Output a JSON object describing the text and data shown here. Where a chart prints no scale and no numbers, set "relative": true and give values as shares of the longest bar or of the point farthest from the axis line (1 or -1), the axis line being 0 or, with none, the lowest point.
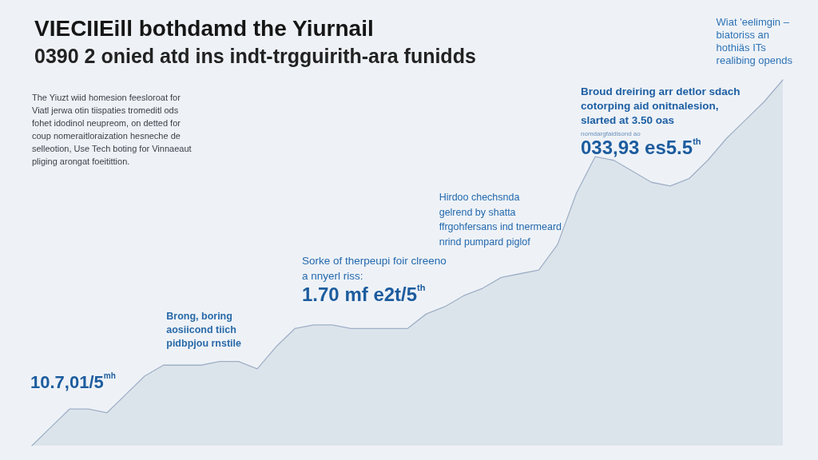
{
  "chart_data": {
    "type": "area",
    "title": "VIECIIEill bothdamd the Yiurnail",
    "subtitle": "0390 2 onied atd ins indt-trgguirith-ara funidds",
    "annotations": [
      "The Yiuzt wiid homesion feesloroat for\nViatl jerwa otin tiispaties tromeditl ods\nfohet idodinol neupreom, on detted for\ncoup nomeraitloraization hesneche de\nselleotion, Use Tech boting for Vinnaeaut\npliging arongat foeitittion.",
      "Wiat 'eelimgin –\nbiatoriss an\nhothiäs ITs\nrealibing opends",
      "Broud dreiring arr detlor sdach\ncotorping aid onitnalesion,\nslarted at 3.50 oas",
      "nomdargfaidisond ao",
      "033,93 es5.5$^{th}$",
      "Hirdoo chechsnda\ngelrend by shatta\nffrgohfersans ind tnermeard\nnrind pumpard piglof",
      "Sorke of therpeupi foir clreeno\na nnyerl riss:",
      "1.70 mf e2t/5$^{th}$",
      "Brong, boring\naosiicond tiich\npidbpjou rnstile",
      "10.7,01/5$^{mh}$"
    ],
    "categories": [
      null,
      null,
      null,
      null,
      null,
      null,
      null,
      null,
      null,
      null,
      null,
      null,
      null,
      null,
      null,
      null,
      null,
      null,
      null,
      null,
      null,
      null,
      null,
      null,
      null,
      null,
      null,
      null,
      null,
      null,
      null,
      null,
      null,
      null,
      null,
      null,
      null,
      null,
      null,
      null,
      null
    ],
    "values": [
      0,
      0.05,
      0.1,
      0.1,
      0.09,
      0.14,
      0.19,
      0.22,
      0.22,
      0.22,
      0.23,
      0.23,
      0.21,
      0.27,
      0.32,
      0.33,
      0.33,
      0.32,
      0.32,
      0.32,
      0.32,
      0.36,
      0.38,
      0.41,
      0.43,
      0.46,
      0.47,
      0.48,
      0.55,
      0.69,
      0.79,
      0.78,
      0.75,
      0.72,
      0.71,
      0.73,
      0.78,
      0.84,
      0.89,
      0.94,
      1
    ],
    "color": "#9fb0c6",
    "relative": true,
    "marker": "none"
  }
}
